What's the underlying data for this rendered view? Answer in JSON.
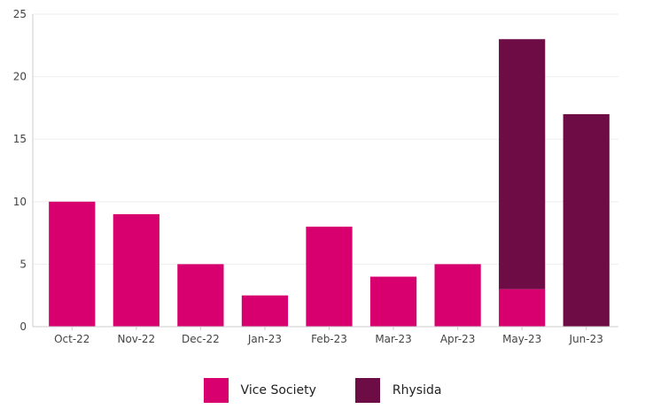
{
  "chart_data": {
    "type": "bar",
    "stacked": true,
    "categories": [
      "Oct-22",
      "Nov-22",
      "Dec-22",
      "Jan-23",
      "Feb-23",
      "Mar-23",
      "Apr-23",
      "May-23",
      "Jun-23"
    ],
    "series": [
      {
        "name": "Vice Society",
        "color": "#d8006f",
        "values": [
          10,
          9,
          5,
          2.5,
          8,
          4,
          5,
          3,
          0
        ]
      },
      {
        "name": "Rhysida",
        "color": "#6e0d45",
        "values": [
          0,
          0,
          0,
          0,
          0,
          0,
          0,
          20,
          17
        ]
      }
    ],
    "yticks": [
      "0",
      "5",
      "10",
      "15",
      "20",
      "25"
    ],
    "ylim": [
      0,
      25
    ],
    "grid": true,
    "legend_position": "bottom-center"
  }
}
